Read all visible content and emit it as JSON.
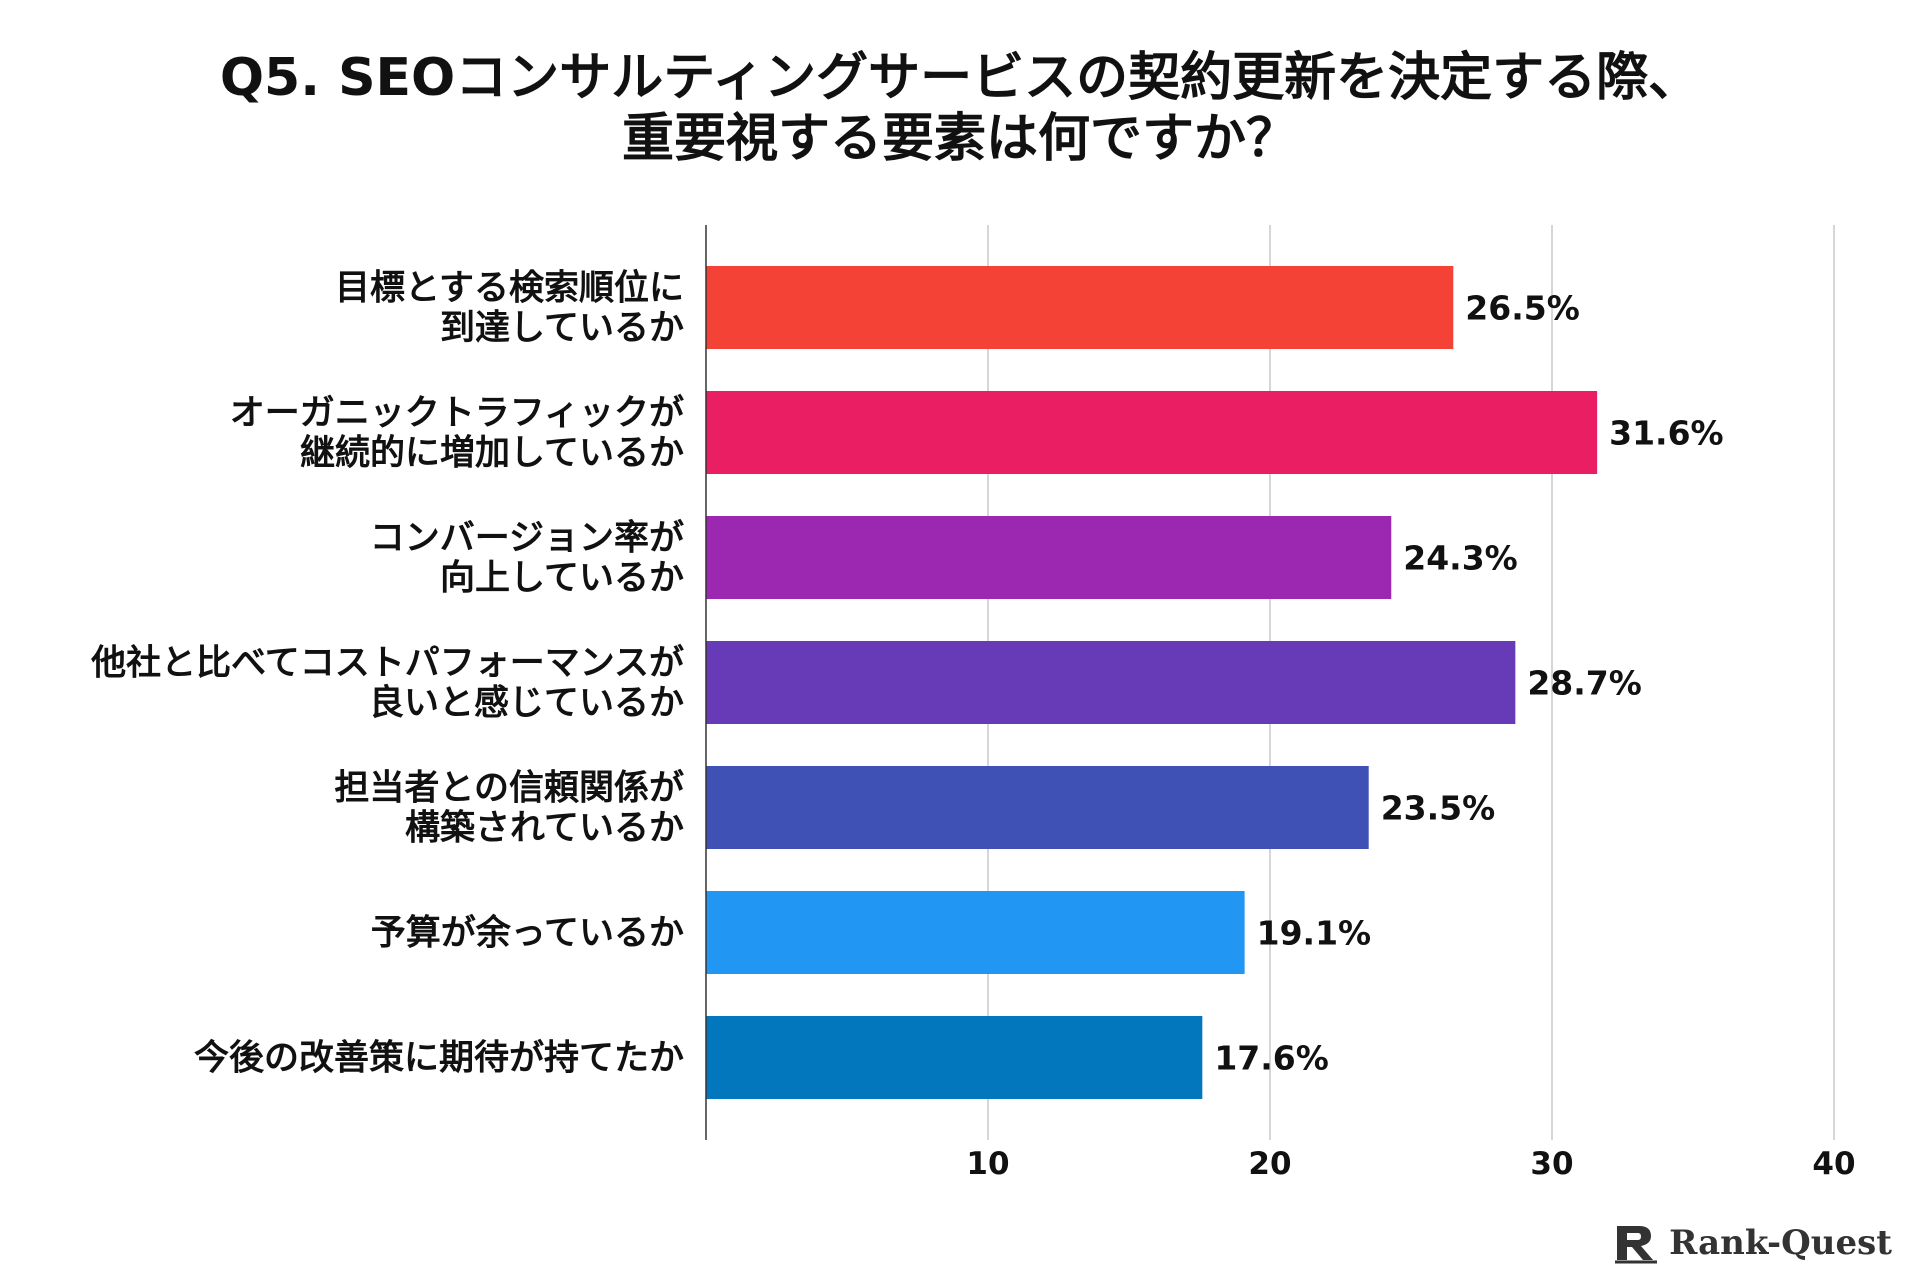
{
  "chart_data": {
    "type": "bar",
    "orientation": "horizontal",
    "title_lines": [
      "Q5. SEOコンサルティングサービスの契約更新を決定する際、",
      "重要視する要素は何ですか？"
    ],
    "categories": [
      [
        "目標とする検索順位に",
        "到達しているか"
      ],
      [
        "オーガニックトラフィックが",
        "継続的に増加しているか"
      ],
      [
        "コンバージョン率が",
        "向上しているか"
      ],
      [
        "他社と比べてコストパフォーマンスが",
        "良いと感じているか"
      ],
      [
        "担当者との信頼関係が",
        "構築されているか"
      ],
      [
        "予算が余っているか"
      ],
      [
        "今後の改善策に期待が持てたか"
      ]
    ],
    "values": [
      26.5,
      31.6,
      24.3,
      28.7,
      23.5,
      19.1,
      17.6
    ],
    "value_labels": [
      "26.5%",
      "31.6%",
      "24.3%",
      "28.7%",
      "23.5%",
      "19.1%",
      "17.6%"
    ],
    "colors": [
      "#F44336",
      "#E91E63",
      "#9C27B0",
      "#673AB7",
      "#3F51B5",
      "#2196F3",
      "#0277BD"
    ],
    "xlim": [
      0,
      40
    ],
    "xticks": [
      10,
      20,
      30,
      40
    ],
    "xtick_labels": [
      "10",
      "20",
      "30",
      "40"
    ],
    "grid": true
  },
  "brand": {
    "name": "Rank-Quest",
    "color": "#333333"
  }
}
